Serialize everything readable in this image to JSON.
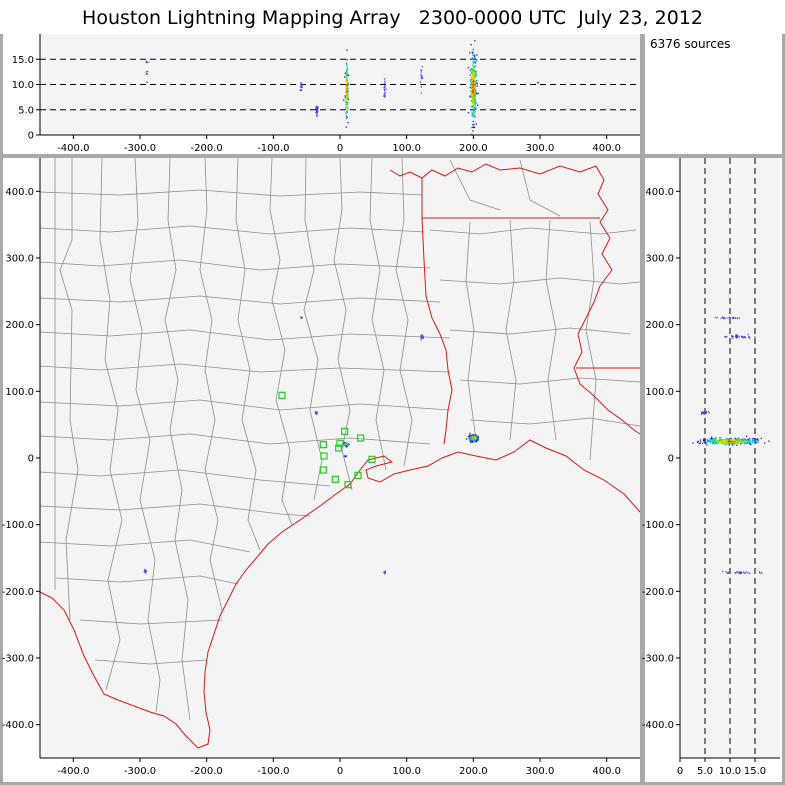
{
  "title": "Houston Lightning Mapping Array   2300-0000 UTC  July 23, 2012",
  "source_count": "6376 sources",
  "colors": {
    "frame": "#a9a9a9",
    "plot_bg": "#f4f4f4",
    "county": "#8c8c8c",
    "state": "#d81818",
    "station": "#22cc22"
  },
  "chart_data": [
    {
      "type": "scatter",
      "panel": "alt-vs-east",
      "xlim": [
        -450,
        450
      ],
      "ylim": [
        0,
        20
      ],
      "xticks": [
        -400,
        -300,
        -200,
        -100,
        0,
        100,
        200,
        300,
        400
      ],
      "xtick_labels": [
        "-400.0",
        "-300.0",
        "-200.0",
        "-100.0",
        "0",
        "100.0",
        "200.0",
        "300.0",
        "400.0"
      ],
      "yticks": [
        0,
        5,
        10,
        15
      ],
      "ytick_labels": [
        "0",
        "5.0",
        "10.0",
        "15.0"
      ],
      "dashed_lines_y": [
        5,
        10,
        15
      ],
      "clusters": [
        {
          "x": 200,
          "y": 9.5,
          "xspread": 4,
          "yspread": 6.0,
          "n": 320,
          "strength": "high"
        },
        {
          "x": 10,
          "y": 9.0,
          "xspread": 2,
          "yspread": 4.5,
          "n": 150,
          "strength": "high"
        },
        {
          "x": -35,
          "y": 4.8,
          "xspread": 2,
          "yspread": 0.9,
          "n": 30,
          "strength": "low"
        },
        {
          "x": -58,
          "y": 9.5,
          "xspread": 1.5,
          "yspread": 1.2,
          "n": 18,
          "strength": "low"
        },
        {
          "x": 67,
          "y": 9.5,
          "xspread": 1.5,
          "yspread": 2.5,
          "n": 18,
          "strength": "low"
        },
        {
          "x": 122,
          "y": 11.5,
          "xspread": 1.5,
          "yspread": 2.0,
          "n": 16,
          "strength": "low"
        },
        {
          "x": -290,
          "y": 13.0,
          "xspread": 2,
          "yspread": 2.5,
          "n": 8,
          "strength": "low"
        },
        {
          "x": 297,
          "y": 10.5,
          "xspread": 1,
          "yspread": 0.4,
          "n": 3,
          "strength": "low"
        }
      ]
    },
    {
      "type": "scatter",
      "panel": "north-vs-east",
      "xlim": [
        -450,
        450
      ],
      "ylim": [
        -450,
        450
      ],
      "xticks": [
        -400,
        -300,
        -200,
        -100,
        0,
        100,
        200,
        300,
        400
      ],
      "xtick_labels": [
        "-400.0",
        "-300.0",
        "-200.0",
        "-100.0",
        "0",
        "100.0",
        "200.0",
        "300.0",
        "400.0"
      ],
      "yticks": [
        -400,
        -300,
        -200,
        -100,
        0,
        100,
        200,
        300,
        400
      ],
      "ytick_labels": [
        "-400.0",
        "-300.0",
        "-200.0",
        "-100.0",
        "0",
        "100.0",
        "200.0",
        "300.0",
        "400.0"
      ],
      "stations": [
        [
          -87,
          94
        ],
        [
          7,
          40
        ],
        [
          31,
          30
        ],
        [
          -25,
          20
        ],
        [
          0,
          22
        ],
        [
          -2,
          15
        ],
        [
          -24,
          3
        ],
        [
          48,
          -2
        ],
        [
          -25,
          -18
        ],
        [
          27,
          -26
        ],
        [
          -7,
          -32
        ],
        [
          12,
          -40
        ]
      ],
      "clusters": [
        {
          "x": 200,
          "y": 30,
          "xspread": 6,
          "yspread": 3.5,
          "n": 260,
          "strength": "high"
        },
        {
          "x": 10,
          "y": 20,
          "xspread": 2.5,
          "yspread": 2.5,
          "n": 70,
          "strength": "high"
        },
        {
          "x": 123,
          "y": 182,
          "xspread": 2,
          "yspread": 3,
          "n": 25,
          "strength": "low"
        },
        {
          "x": -36,
          "y": 68,
          "xspread": 2,
          "yspread": 2,
          "n": 12,
          "strength": "low"
        },
        {
          "x": -292,
          "y": -170,
          "xspread": 2,
          "yspread": 2,
          "n": 12,
          "strength": "low"
        },
        {
          "x": 67,
          "y": -172,
          "xspread": 1.5,
          "yspread": 2,
          "n": 10,
          "strength": "low"
        },
        {
          "x": -58,
          "y": 210,
          "xspread": 1.5,
          "yspread": 1.5,
          "n": 6,
          "strength": "low"
        },
        {
          "x": 8,
          "y": 3,
          "xspread": 1.5,
          "yspread": 1.5,
          "n": 6,
          "strength": "low"
        }
      ]
    },
    {
      "type": "scatter",
      "panel": "north-vs-alt",
      "xlim": [
        0,
        20
      ],
      "ylim": [
        -450,
        450
      ],
      "xticks": [
        0,
        5,
        10,
        15
      ],
      "xtick_labels": [
        "0",
        "5.0",
        "10.0",
        "15.0"
      ],
      "yticks": [
        -400,
        -300,
        -200,
        -100,
        0,
        100,
        200,
        300,
        400
      ],
      "ytick_labels": [
        "-400.0",
        "-300.0",
        "-200.0",
        "-100.0",
        "0",
        "100.0",
        "200.0",
        "300.0",
        "400.0"
      ],
      "dashed_lines_x": [
        5,
        10,
        15
      ],
      "clusters": [
        {
          "x": 10,
          "y": 25,
          "xspread": 4.5,
          "yspread": 4,
          "n": 360,
          "strength": "high"
        },
        {
          "x": 5,
          "y": 68,
          "xspread": 0.8,
          "yspread": 2,
          "n": 20,
          "strength": "low"
        },
        {
          "x": 12,
          "y": 182,
          "xspread": 3,
          "yspread": 2,
          "n": 40,
          "strength": "low"
        },
        {
          "x": 10,
          "y": 210,
          "xspread": 2,
          "yspread": 1.5,
          "n": 20,
          "strength": "low"
        },
        {
          "x": 12,
          "y": -172,
          "xspread": 3,
          "yspread": 1.5,
          "n": 30,
          "strength": "low"
        }
      ]
    }
  ]
}
